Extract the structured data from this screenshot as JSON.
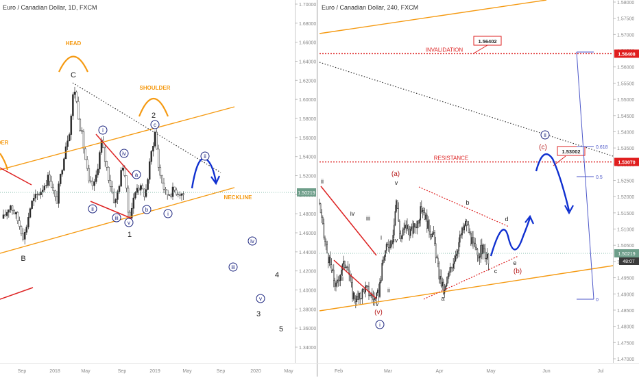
{
  "colors": {
    "candle_up": "#2d2d2d",
    "candle_down": "#ffffff",
    "candle_border": "#2d2d2d",
    "wave_red": "#e53935",
    "wave_blue_label": "#1a237e",
    "orange": "#f59a12",
    "line_red": "#dd2222",
    "dotted_black": "#333333",
    "projection_blue": "#1030d0",
    "fib_blue": "#4b56c8",
    "price_tag_green": "#6e9e8a",
    "price_tag_red": "#e01e1e",
    "price_tag_dark": "#3a3a3a",
    "axis_text": "#888888",
    "title_text": "#333333"
  },
  "chart_data": [
    {
      "type": "candlestick",
      "title": "Euro / Canadian Dollar, 1D, FXCM",
      "xlabel": "",
      "ylabel": "",
      "x_ticks": [
        "Sep",
        "2018",
        "May",
        "Sep",
        "2019",
        "May",
        "Sep",
        "2020",
        "May"
      ],
      "y_ticks": [
        "1.70000",
        "1.68000",
        "1.66000",
        "1.64000",
        "1.62000",
        "1.60000",
        "1.58000",
        "1.56000",
        "1.54000",
        "1.52000",
        "1.50000",
        "1.48000",
        "1.46000",
        "1.44000",
        "1.42000",
        "1.40000",
        "1.38000",
        "1.36000",
        "1.34000"
      ],
      "ylim": [
        1.33,
        1.705
      ],
      "grid": false,
      "last_price": "1.50219",
      "annotations": {
        "pattern": [
          "HEAD",
          "SHOULDER",
          "DER",
          "NECKLINE"
        ],
        "waves_black": [
          "C",
          "B",
          "2",
          "1",
          "3",
          "4",
          "5"
        ],
        "waves_circled": [
          "i",
          "ii",
          "iii",
          "iv",
          "v",
          "a",
          "b",
          "c"
        ],
        "projection_circled": [
          "ii",
          "iii",
          "iv",
          "v"
        ]
      }
    },
    {
      "type": "candlestick",
      "title": "Euro / Canadian Dollar, 240, FXCM",
      "xlabel": "",
      "ylabel": "",
      "x_ticks": [
        "Feb",
        "Mar",
        "Apr",
        "May",
        "Jun",
        "Jul"
      ],
      "y_ticks": [
        "1.58000",
        "1.57500",
        "1.57000",
        "1.56500",
        "1.56000",
        "1.55500",
        "1.55000",
        "1.54500",
        "1.54000",
        "1.53500",
        "1.53000",
        "1.52500",
        "1.52000",
        "1.51500",
        "1.51000",
        "1.50500",
        "1.50000",
        "1.49500",
        "1.49000",
        "1.48500",
        "1.48000",
        "1.47500",
        "1.47000"
      ],
      "ylim": [
        1.4675,
        1.582
      ],
      "grid": false,
      "last_price": "1.50219",
      "time_tag": "48:07",
      "levels": [
        {
          "label": "INVALIDATION",
          "price": "1.56408",
          "note": "1.56402"
        },
        {
          "label": "RESISTANCE",
          "price": "1.53070",
          "note": "1.53002"
        }
      ],
      "fib_levels": [
        "0.618",
        "0.5",
        "0"
      ],
      "annotations": {
        "waves_black": [
          "ii",
          "iv",
          "iii",
          "v",
          "i",
          "ii",
          "iii",
          "iv",
          "v",
          "a",
          "b",
          "c",
          "d",
          "e"
        ],
        "waves_red": [
          "(a)",
          "(b)",
          "(c)",
          "(v)"
        ],
        "waves_circled": [
          "i",
          "ii"
        ]
      }
    }
  ]
}
